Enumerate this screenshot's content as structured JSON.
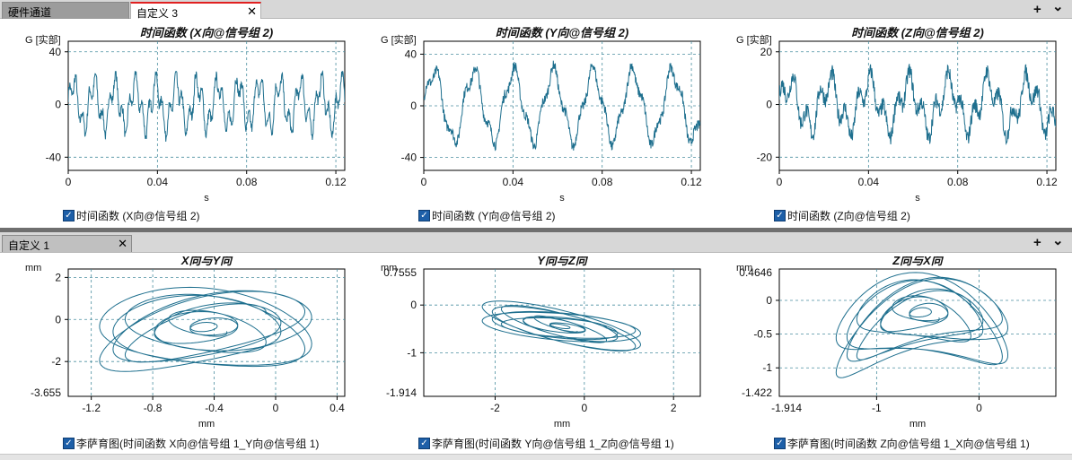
{
  "top_tabs": {
    "tab1": "硬件通道",
    "tab2": "自定义 3",
    "close": "✕",
    "plus": "+",
    "chevron": "⌄"
  },
  "bottom_tabs": {
    "tab1": "自定义 1",
    "close": "✕",
    "plus": "+",
    "chevron": "⌄"
  },
  "legends": [
    "时间函数 (X向@信号组 2)",
    "时间函数 (Y向@信号组 2)",
    "时间函数 (Z向@信号组 2)",
    "李萨育图(时间函数 X向@信号组 1_Y向@信号组 1)",
    "李萨育图(时间函数 Y向@信号组 1_Z向@信号组 1)",
    "李萨育图(时间函数 Z向@信号组 1_X向@信号组 1)"
  ],
  "colors": {
    "trace": "#1e6f8e",
    "grid": "#4b8fa0",
    "checkbox": "#1d5fa8"
  },
  "chart_data": [
    {
      "type": "line",
      "title": "时间函数 (X向@信号组 2)",
      "ylabel": "G [实部]",
      "xlabel": "s",
      "xlim": [
        0,
        0.124
      ],
      "ylim": [
        -50,
        48
      ],
      "x_ticks": [
        0,
        0.04,
        0.08,
        0.12
      ],
      "x_tick_labels": [
        "0",
        "0.04",
        "0.08",
        "0.12"
      ],
      "y_ticks": [
        -40,
        0,
        40
      ],
      "y_tick_labels": [
        "-40",
        "0",
        "40"
      ],
      "series": [
        {
          "name": "时间函数 (X向@信号组 2)",
          "freq_hz": 108,
          "amplitude": 16,
          "harmonic_amp": 9,
          "noise": 4,
          "peak_min": [
            -30,
            25
          ]
        }
      ]
    },
    {
      "type": "line",
      "title": "时间函数 (Y向@信号组 2)",
      "ylabel": "G [实部]",
      "xlabel": "s",
      "xlim": [
        0,
        0.124
      ],
      "ylim": [
        -50,
        50
      ],
      "x_ticks": [
        0,
        0.04,
        0.08,
        0.12
      ],
      "x_tick_labels": [
        "0",
        "0.04",
        "0.08",
        "0.12"
      ],
      "y_ticks": [
        -40,
        0,
        40
      ],
      "y_tick_labels": [
        "-40",
        "0",
        "40"
      ],
      "series": [
        {
          "name": "时间函数 (Y向@信号组 2)",
          "freq_hz": 56,
          "amplitude": 26,
          "harmonic_amp": 6,
          "noise": 4,
          "peak_min": [
            -40,
            35
          ]
        }
      ]
    },
    {
      "type": "line",
      "title": "时间函数 (Z向@信号组 2)",
      "ylabel": "G [实部]",
      "xlabel": "s",
      "xlim": [
        0,
        0.124
      ],
      "ylim": [
        -25,
        24
      ],
      "x_ticks": [
        0,
        0.04,
        0.08,
        0.12
      ],
      "x_tick_labels": [
        "0",
        "0.04",
        "0.08",
        "0.12"
      ],
      "y_ticks": [
        -20,
        0,
        20
      ],
      "y_tick_labels": [
        "-20",
        "0",
        "20"
      ],
      "series": [
        {
          "name": "时间函数 (Z向@信号组 2)",
          "freq_hz": 56,
          "amplitude": 8,
          "harmonic_amp": 5,
          "noise": 3,
          "peak_min": [
            -19,
            16
          ]
        }
      ]
    },
    {
      "type": "line",
      "title": "X向与Y向",
      "ylabel": "mm",
      "xlabel": "mm",
      "xlim": [
        -1.35,
        0.45
      ],
      "ylim": [
        -3.655,
        2.4
      ],
      "x_ticks": [
        -1.2,
        -0.8,
        -0.4,
        0,
        0.4
      ],
      "x_tick_labels": [
        "-1.2",
        "-0.8",
        "-0.4",
        "0",
        "0.4"
      ],
      "y_ticks": [
        2,
        0,
        -2
      ],
      "y_tick_labels": [
        "2",
        "0",
        "-2"
      ],
      "y_extra_labels": [
        "-3.655"
      ],
      "series": [
        {
          "name": "李萨育图(时间函数 X向@信号组 1_Y向@信号组 1)",
          "center": [
            -0.45,
            -0.6
          ],
          "spread": [
            0.7,
            1.9
          ],
          "curvature": 0.5
        }
      ]
    },
    {
      "type": "line",
      "title": "Y向与Z向",
      "ylabel": "mm",
      "xlabel": "mm",
      "xlim": [
        -3.6,
        2.6
      ],
      "ylim": [
        -1.914,
        0.7555
      ],
      "x_ticks": [
        -2,
        0,
        2
      ],
      "x_tick_labels": [
        "-2",
        "0",
        "2"
      ],
      "y_ticks": [
        0,
        -1
      ],
      "y_tick_labels": [
        "0",
        "-1"
      ],
      "y_extra_labels": [
        "0.7555",
        "-1.914"
      ],
      "series": [
        {
          "name": "李萨育图(时间函数 Y向@信号组 1_Z向@信号组 1)",
          "center": [
            -0.5,
            -0.45
          ],
          "spread": [
            1.8,
            0.35
          ],
          "slope": -0.18
        }
      ]
    },
    {
      "type": "line",
      "title": "Z向与X向",
      "ylabel": "mm",
      "xlabel": "mm",
      "xlim": [
        -1.95,
        0.75
      ],
      "ylim": [
        -1.422,
        0.4646
      ],
      "x_ticks": [
        -1,
        0
      ],
      "x_tick_labels": [
        "-1",
        "0"
      ],
      "x_extra_labels": [
        "-1.914"
      ],
      "y_ticks": [
        0,
        -0.5,
        -1
      ],
      "y_tick_labels": [
        "0",
        "-0.5",
        "-1"
      ],
      "y_extra_labels": [
        "0.4646",
        "-1.422"
      ],
      "series": [
        {
          "name": "李萨育图(时间函数 Z向@信号组 1_X向@信号组 1)",
          "center": [
            -0.55,
            -0.45
          ],
          "spread": [
            0.85,
            0.6
          ],
          "curvature": 0.55
        }
      ]
    }
  ]
}
